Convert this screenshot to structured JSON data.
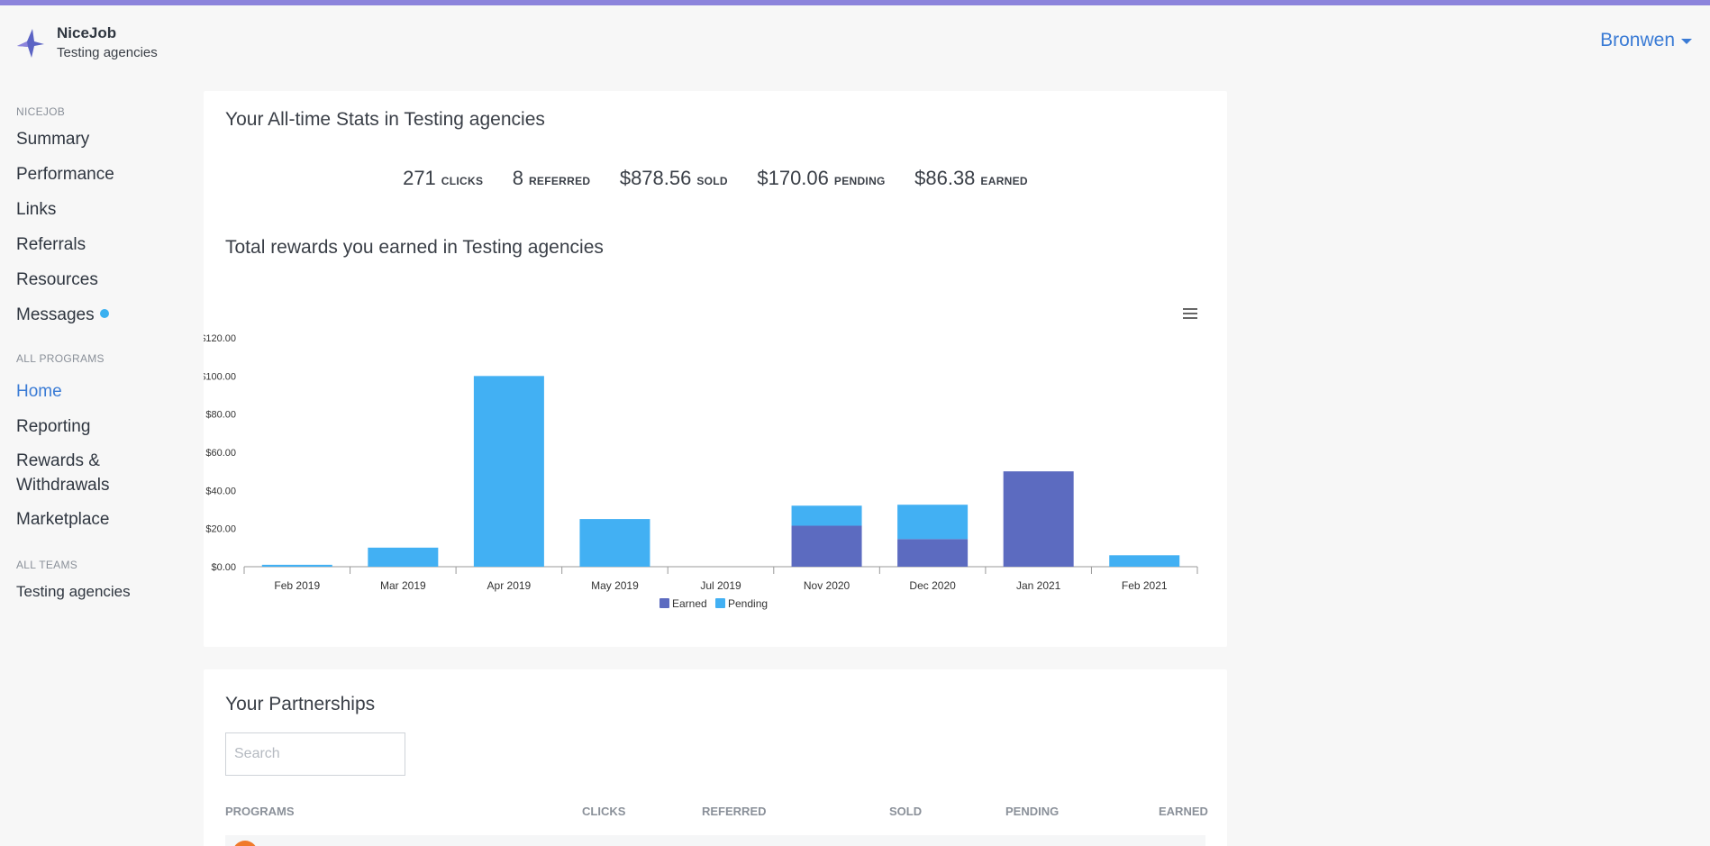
{
  "app": {
    "name": "NiceJob",
    "team": "Testing agencies",
    "user": "Bronwen",
    "accent_color": "#3a7bd5",
    "topbar_color": "#8c84dc"
  },
  "sidebar": {
    "nicejob_section": "NICEJOB",
    "nicejob_items": [
      {
        "label": "Summary"
      },
      {
        "label": "Performance"
      },
      {
        "label": "Links"
      },
      {
        "label": "Referrals"
      },
      {
        "label": "Resources"
      },
      {
        "label": "Messages",
        "has_unread_dot": true
      }
    ],
    "programs_section": "ALL PROGRAMS",
    "programs_items": [
      {
        "label": "Home",
        "active": true
      },
      {
        "label": "Reporting"
      },
      {
        "label": "Rewards & Withdrawals"
      },
      {
        "label": "Marketplace"
      }
    ],
    "teams_section": "ALL TEAMS",
    "teams_items": [
      {
        "label": "Testing agencies"
      }
    ]
  },
  "stats": {
    "title": "Your All-time Stats in Testing agencies",
    "items": [
      {
        "value": "271",
        "label": "CLICKS"
      },
      {
        "value": "8",
        "label": "REFERRED"
      },
      {
        "value": "$878.56",
        "label": "SOLD"
      },
      {
        "value": "$170.06",
        "label": "PENDING"
      },
      {
        "value": "$86.38",
        "label": "EARNED"
      }
    ]
  },
  "rewards_chart": {
    "title": "Total rewards you earned in Testing agencies",
    "menu_icon": "hamburger-menu-icon"
  },
  "chart_data": {
    "type": "bar",
    "stacked": true,
    "categories": [
      "Feb 2019",
      "Mar 2019",
      "Apr 2019",
      "May 2019",
      "Jul 2019",
      "Nov 2020",
      "Dec 2020",
      "Jan 2021",
      "Feb 2021"
    ],
    "series": [
      {
        "name": "Earned",
        "color": "#5c6bc0",
        "values": [
          0,
          0,
          0,
          0,
          0,
          21.5,
          14.5,
          50,
          0
        ]
      },
      {
        "name": "Pending",
        "color": "#42b0f3",
        "values": [
          1,
          10,
          100,
          25,
          0,
          10.5,
          18,
          0,
          6
        ]
      }
    ],
    "ylim": [
      0,
      120
    ],
    "yticks": [
      "$0.00",
      "$20.00",
      "$40.00",
      "$60.00",
      "$80.00",
      "$100.00",
      "$120.00"
    ],
    "ytick_values": [
      0,
      20,
      40,
      60,
      80,
      100,
      120
    ],
    "legend_position": "bottom",
    "grid": false
  },
  "partnerships": {
    "title": "Your Partnerships",
    "search_placeholder": "Search",
    "columns": [
      "PROGRAMS",
      "CLICKS",
      "REFERRED",
      "SOLD",
      "PENDING",
      "EARNED"
    ]
  }
}
